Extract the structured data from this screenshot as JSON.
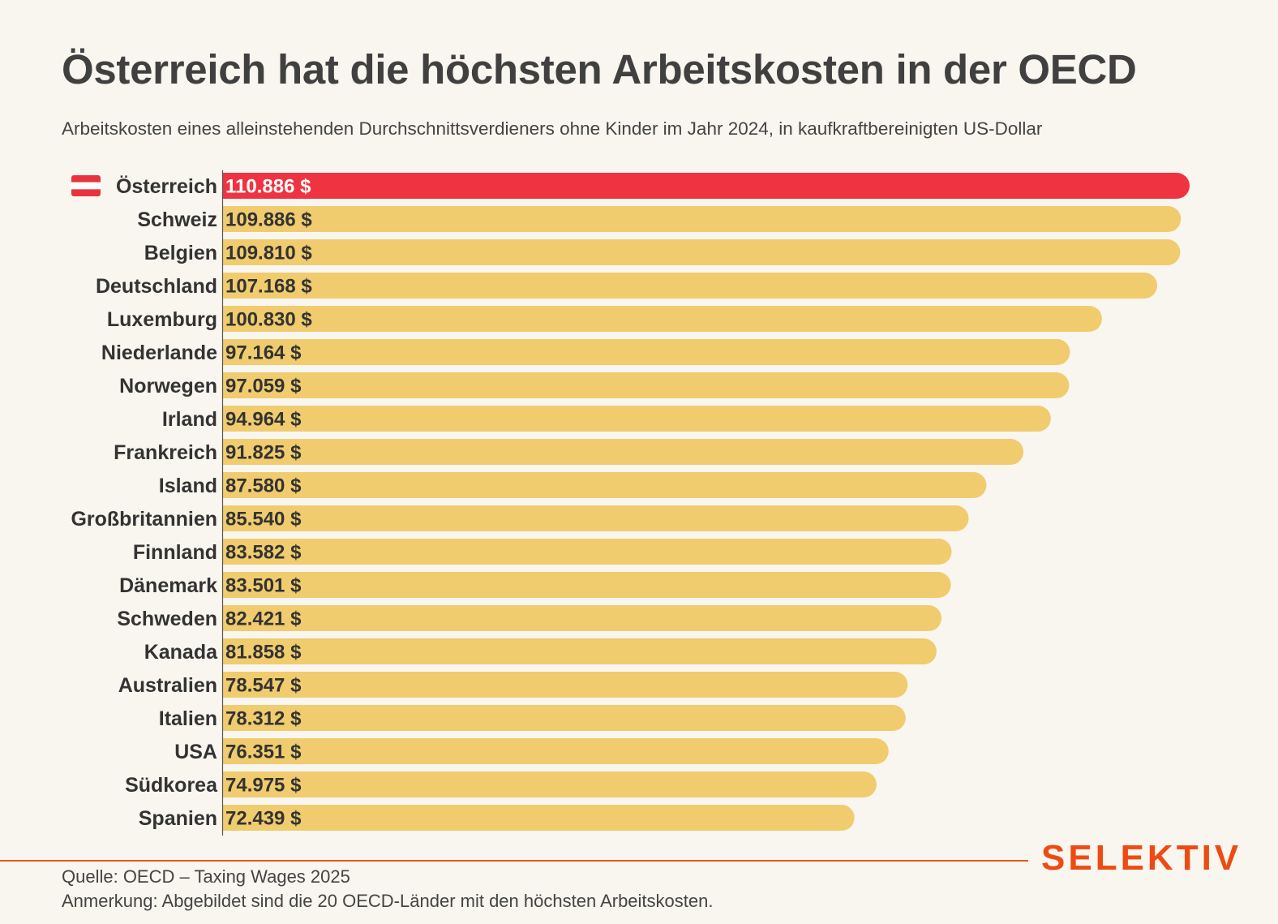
{
  "title": "Österreich hat die höchsten Arbeitskosten in der OECD",
  "subtitle": "Arbeitskosten eines alleinstehenden Durchschnittsverdieners ohne Kinder im Jahr 2024, in kaufkraftbereinigten US-Dollar",
  "source": "Quelle: OECD – Taxing Wages 2025",
  "note": "Anmerkung: Abgebildet sind die 20 OECD-Länder mit den höchsten Arbeitskosten.",
  "logo": "SELEKTIV",
  "colors": {
    "highlight": "#ef3340",
    "bar": "#f0cc6e",
    "accent": "#ee4b14"
  },
  "chart_data": {
    "type": "bar",
    "orientation": "horizontal",
    "categories": [
      "Österreich",
      "Schweiz",
      "Belgien",
      "Deutschland",
      "Luxemburg",
      "Niederlande",
      "Norwegen",
      "Irland",
      "Frankreich",
      "Island",
      "Großbritannien",
      "Finnland",
      "Dänemark",
      "Schweden",
      "Kanada",
      "Australien",
      "Italien",
      "USA",
      "Südkorea",
      "Spanien"
    ],
    "values": [
      110886,
      109886,
      109810,
      107168,
      100830,
      97164,
      97059,
      94964,
      91825,
      87580,
      85540,
      83582,
      83501,
      82421,
      81858,
      78547,
      78312,
      76351,
      74975,
      72439
    ],
    "value_labels": [
      "110.886 $",
      "109.886 $",
      "109.810 $",
      "107.168 $",
      "100.830 $",
      "97.164 $",
      "97.059 $",
      "94.964 $",
      "91.825 $",
      "87.580 $",
      "85.540 $",
      "83.582 $",
      "83.501 $",
      "82.421 $",
      "81.858 $",
      "78.547 $",
      "78.312 $",
      "76.351 $",
      "74.975 $",
      "72.439 $"
    ],
    "highlight": "Österreich",
    "highlight_icon": "austria-flag-icon",
    "grid": false
  }
}
